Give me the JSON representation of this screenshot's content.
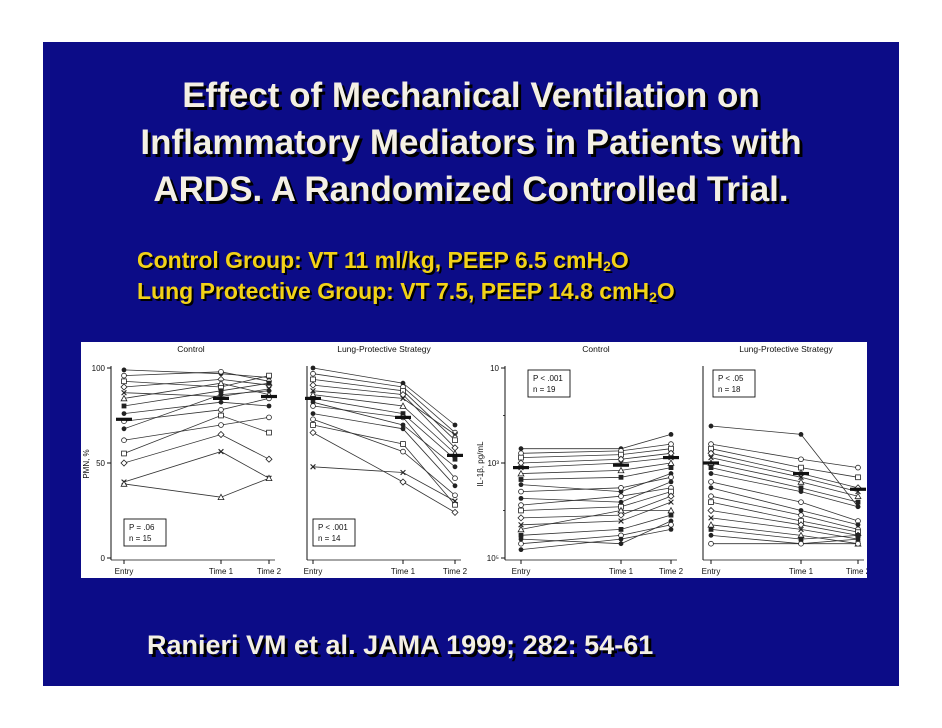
{
  "slide": {
    "title_lines": [
      "Effect of Mechanical Ventilation on",
      "Inflammatory Mediators in Patients with",
      "ARDS. A Randomized Controlled Trial."
    ],
    "control_group": {
      "text": "Control Group: VT 11 ml/kg, PEEP 6.5 cmH",
      "sub": "2",
      "tail": "O"
    },
    "protective_group": {
      "text": "Lung Protective Group: VT 7.5, PEEP 14.8 cmH",
      "sub": "2",
      "tail": "O"
    },
    "citation": "Ranieri VM et al. JAMA 1999; 282: 54-61",
    "colors": {
      "background": "#0c0c87",
      "title": "#f4f0e4",
      "groups": "#f2d218",
      "shadow": "#000000"
    }
  },
  "chart_data": [
    {
      "type": "line",
      "title": "Control",
      "ylabel": "PMN, %",
      "yscale": "linear",
      "ylim": [
        0,
        100
      ],
      "yticks": [
        "100",
        "50",
        "0"
      ],
      "categories": [
        "Entry",
        "Time 1",
        "Time 2"
      ],
      "stat_label": "P = .06",
      "n_label": "n = 15",
      "means": [
        73,
        84,
        85
      ],
      "series": [
        {
          "values": [
            99,
            97,
            95
          ]
        },
        {
          "values": [
            96,
            98,
            93
          ]
        },
        {
          "values": [
            93,
            90,
            96
          ]
        },
        {
          "values": [
            90,
            94,
            91
          ]
        },
        {
          "values": [
            87,
            85,
            89
          ]
        },
        {
          "values": [
            84,
            92,
            86
          ]
        },
        {
          "values": [
            80,
            88,
            92
          ]
        },
        {
          "values": [
            76,
            82,
            80
          ]
        },
        {
          "values": [
            72,
            78,
            84
          ]
        },
        {
          "values": [
            68,
            86,
            88
          ]
        },
        {
          "values": [
            62,
            70,
            74
          ]
        },
        {
          "values": [
            55,
            75,
            66
          ]
        },
        {
          "values": [
            50,
            65,
            52
          ]
        },
        {
          "values": [
            40,
            56,
            42
          ]
        },
        {
          "values": [
            39,
            32,
            42
          ]
        }
      ]
    },
    {
      "type": "line",
      "title": "Lung-Protective Strategy",
      "yscale": "linear",
      "ylim": [
        0,
        100
      ],
      "categories": [
        "Entry",
        "Time 1",
        "Time 2"
      ],
      "stat_label": "P < .001",
      "n_label": "n = 14",
      "means": [
        84,
        74,
        54
      ],
      "series": [
        {
          "values": [
            100,
            92,
            70
          ]
        },
        {
          "values": [
            97,
            90,
            66
          ]
        },
        {
          "values": [
            94,
            88,
            62
          ]
        },
        {
          "values": [
            91,
            86,
            58
          ]
        },
        {
          "values": [
            88,
            84,
            65
          ]
        },
        {
          "values": [
            86,
            80,
            55
          ]
        },
        {
          "values": [
            84,
            76,
            52
          ]
        },
        {
          "values": [
            82,
            70,
            48
          ]
        },
        {
          "values": [
            80,
            74,
            42
          ]
        },
        {
          "values": [
            76,
            68,
            38
          ]
        },
        {
          "values": [
            73,
            56,
            33
          ]
        },
        {
          "values": [
            70,
            60,
            28
          ]
        },
        {
          "values": [
            66,
            40,
            24
          ]
        },
        {
          "values": [
            48,
            45,
            30
          ]
        }
      ]
    },
    {
      "type": "line",
      "title": "Control",
      "ylabel": "IL-1β, pg/mL",
      "yscale": "log",
      "ylim": [
        10,
        100000
      ],
      "yticks": [
        "10",
        "10³",
        "10⁵"
      ],
      "categories": [
        "Entry",
        "Time 1",
        "Time 2"
      ],
      "stat_label": "P < .001",
      "n_label": "n = 19",
      "means": [
        800,
        900,
        1300
      ],
      "series": [
        {
          "values": [
            2000,
            2000,
            4000
          ]
        },
        {
          "values": [
            1600,
            1800,
            2500
          ]
        },
        {
          "values": [
            1300,
            1500,
            2000
          ]
        },
        {
          "values": [
            1000,
            1200,
            1600
          ]
        },
        {
          "values": [
            800,
            1000,
            1300
          ]
        },
        {
          "values": [
            600,
            700,
            1000
          ]
        },
        {
          "values": [
            450,
            500,
            800
          ]
        },
        {
          "values": [
            350,
            250,
            600
          ]
        },
        {
          "values": [
            250,
            300,
            500
          ]
        },
        {
          "values": [
            180,
            150,
            400
          ]
        },
        {
          "values": [
            130,
            200,
            300
          ]
        },
        {
          "values": [
            100,
            120,
            250
          ]
        },
        {
          "values": [
            70,
            80,
            200
          ]
        },
        {
          "values": [
            50,
            60,
            150
          ]
        },
        {
          "values": [
            40,
            100,
            100
          ]
        },
        {
          "values": [
            30,
            40,
            80
          ]
        },
        {
          "values": [
            25,
            20,
            60
          ]
        },
        {
          "values": [
            20,
            30,
            50
          ]
        },
        {
          "values": [
            15,
            25,
            40
          ]
        }
      ]
    },
    {
      "type": "line",
      "title": "Lung-Protective Strategy",
      "yscale": "log",
      "ylim": [
        10,
        100000
      ],
      "categories": [
        "Entry",
        "Time 1",
        "Time 2"
      ],
      "stat_label": "P < .05",
      "n_label": "n = 18",
      "means": [
        1000,
        600,
        280
      ],
      "series": [
        {
          "values": [
            6000,
            4000,
            120
          ]
        },
        {
          "values": [
            2500,
            1200,
            800
          ]
        },
        {
          "values": [
            2000,
            800,
            500
          ]
        },
        {
          "values": [
            1600,
            600,
            300
          ]
        },
        {
          "values": [
            1300,
            500,
            250
          ]
        },
        {
          "values": [
            1000,
            400,
            200
          ]
        },
        {
          "values": [
            800,
            300,
            150
          ]
        },
        {
          "values": [
            600,
            250,
            120
          ]
        },
        {
          "values": [
            400,
            150,
            60
          ]
        },
        {
          "values": [
            300,
            100,
            50
          ]
        },
        {
          "values": [
            200,
            80,
            40
          ]
        },
        {
          "values": [
            150,
            60,
            35
          ]
        },
        {
          "values": [
            100,
            50,
            30
          ]
        },
        {
          "values": [
            70,
            40,
            25
          ]
        },
        {
          "values": [
            50,
            30,
            20
          ]
        },
        {
          "values": [
            40,
            25,
            30
          ]
        },
        {
          "values": [
            30,
            20,
            25
          ]
        },
        {
          "values": [
            20,
            20,
            20
          ]
        }
      ]
    }
  ]
}
